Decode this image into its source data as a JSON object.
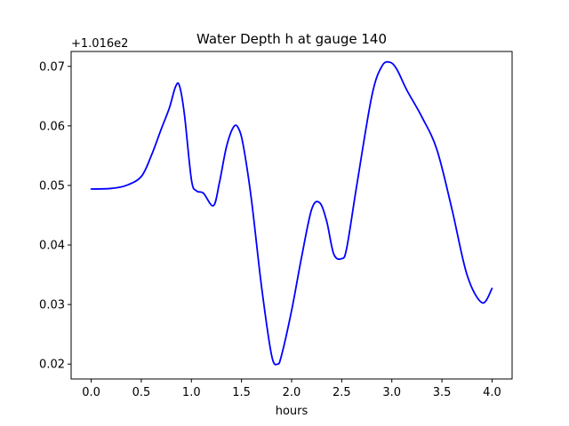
{
  "chart_data": {
    "type": "line",
    "title": "Water Depth h at gauge 140",
    "xlabel": "hours",
    "ylabel": "",
    "y_offset_label": "+1.016e2",
    "xlim": [
      -0.2,
      4.2
    ],
    "ylim": [
      0.0175,
      0.0725
    ],
    "x_ticks": [
      0.0,
      0.5,
      1.0,
      1.5,
      2.0,
      2.5,
      3.0,
      3.5,
      4.0
    ],
    "x_tick_labels": [
      "0.0",
      "0.5",
      "1.0",
      "1.5",
      "2.0",
      "2.5",
      "3.0",
      "3.5",
      "4.0"
    ],
    "y_ticks": [
      0.02,
      0.03,
      0.04,
      0.05,
      0.06,
      0.07
    ],
    "y_tick_labels": [
      "0.02",
      "0.03",
      "0.04",
      "0.05",
      "0.06",
      "0.07"
    ],
    "grid": false,
    "legend": "none",
    "series": [
      {
        "color": "#0000ff",
        "x": [
          0.0,
          0.2,
          0.35,
          0.5,
          0.6,
          0.7,
          0.78,
          0.84,
          0.88,
          0.93,
          1.0,
          1.05,
          1.12,
          1.22,
          1.28,
          1.35,
          1.42,
          1.47,
          1.52,
          1.6,
          1.7,
          1.8,
          1.86,
          1.9,
          2.0,
          2.1,
          2.2,
          2.28,
          2.35,
          2.42,
          2.5,
          2.55,
          2.65,
          2.8,
          2.9,
          2.98,
          3.05,
          3.15,
          3.3,
          3.45,
          3.6,
          3.75,
          3.9,
          4.0
        ],
        "y": [
          0.0494,
          0.0495,
          0.05,
          0.0515,
          0.055,
          0.0595,
          0.063,
          0.0665,
          0.0668,
          0.062,
          0.051,
          0.0491,
          0.0487,
          0.0466,
          0.0505,
          0.0565,
          0.0598,
          0.0596,
          0.0565,
          0.0475,
          0.033,
          0.0215,
          0.02,
          0.0215,
          0.029,
          0.038,
          0.046,
          0.0471,
          0.044,
          0.0385,
          0.0377,
          0.0395,
          0.05,
          0.065,
          0.07,
          0.0707,
          0.0695,
          0.066,
          0.0615,
          0.056,
          0.046,
          0.035,
          0.0303,
          0.0327
        ]
      }
    ]
  }
}
